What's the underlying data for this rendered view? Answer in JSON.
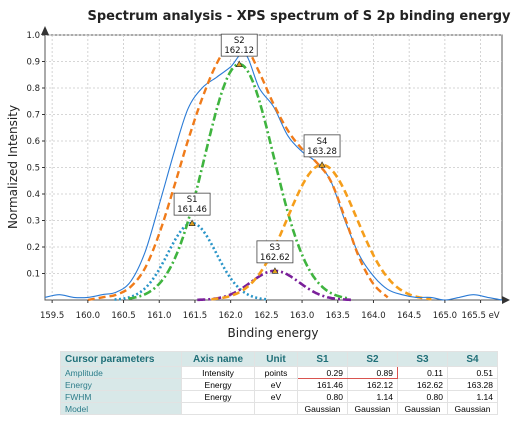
{
  "chart_data": {
    "type": "line",
    "title": "Spectrum analysis - XPS spectrum of S 2p binding energy",
    "xlabel": "Binding energy",
    "ylabel": "Normalized Intensity",
    "xlim": [
      159.4,
      165.8
    ],
    "ylim": [
      0,
      1.0
    ],
    "x_ticks": [
      "159.5",
      "160.0",
      "160.5",
      "161.0",
      "161.5",
      "162.0",
      "162.5",
      "163.0",
      "163.5",
      "164.0",
      "164.5",
      "165.0",
      "165.5 eV"
    ],
    "y_ticks": [
      "0.1",
      "0.2",
      "0.3",
      "0.4",
      "0.5",
      "0.6",
      "0.7",
      "0.8",
      "0.9",
      "1.0"
    ],
    "grid": true,
    "series": [
      {
        "role": "measured-spectrum",
        "color": "#2b7bd6",
        "style": "solid",
        "x": [
          159.4,
          159.6,
          159.8,
          160.0,
          160.2,
          160.4,
          160.6,
          160.8,
          161.0,
          161.2,
          161.4,
          161.6,
          161.8,
          162.0,
          162.2,
          162.4,
          162.6,
          162.8,
          163.0,
          163.2,
          163.4,
          163.6,
          163.8,
          164.0,
          164.2,
          164.4,
          164.6,
          164.8,
          165.0,
          165.2,
          165.4,
          165.6,
          165.8
        ],
        "y": [
          0.01,
          0.02,
          0.01,
          0.01,
          0.02,
          0.03,
          0.07,
          0.18,
          0.36,
          0.55,
          0.72,
          0.8,
          0.84,
          0.88,
          0.93,
          0.8,
          0.73,
          0.62,
          0.56,
          0.52,
          0.45,
          0.3,
          0.17,
          0.09,
          0.04,
          0.02,
          0.01,
          0.01,
          0.0,
          0.01,
          0.02,
          0.01,
          0.0
        ]
      },
      {
        "role": "fit-envelope",
        "color": "#f07b1a",
        "style": "dashed",
        "x": [
          160.0,
          160.2,
          160.4,
          160.6,
          160.8,
          161.0,
          161.2,
          161.4,
          161.6,
          161.8,
          162.0,
          162.2,
          162.4,
          162.6,
          162.8,
          163.0,
          163.2,
          163.4,
          163.6,
          163.8,
          164.0,
          164.2
        ],
        "y": [
          0.0,
          0.01,
          0.02,
          0.05,
          0.12,
          0.25,
          0.42,
          0.6,
          0.76,
          0.89,
          0.97,
          0.96,
          0.86,
          0.74,
          0.64,
          0.57,
          0.52,
          0.45,
          0.31,
          0.16,
          0.06,
          0.01
        ]
      }
    ],
    "peaks": [
      {
        "label": "S1",
        "position": 161.46,
        "amplitude": 0.29,
        "fwhm": 0.8,
        "color": "#2a95c8",
        "style": "dotted"
      },
      {
        "label": "S2",
        "position": 162.12,
        "amplitude": 0.89,
        "fwhm": 1.14,
        "color": "#3fb43f",
        "style": "dash-dot"
      },
      {
        "label": "S3",
        "position": 162.62,
        "amplitude": 0.11,
        "fwhm": 0.8,
        "color": "#7a1f9a",
        "style": "dash-dot"
      },
      {
        "label": "S4",
        "position": 163.28,
        "amplitude": 0.51,
        "fwhm": 1.14,
        "color": "#f59e1b",
        "style": "dashed"
      }
    ],
    "annotations": [
      {
        "label": "S1",
        "value": "161.46"
      },
      {
        "label": "S2",
        "value": "162.12"
      },
      {
        "label": "S3",
        "value": "162.62"
      },
      {
        "label": "S4",
        "value": "163.28"
      }
    ]
  },
  "table": {
    "headers": [
      "Cursor parameters",
      "Axis name",
      "Unit",
      "S1",
      "S2",
      "S3",
      "S4"
    ],
    "rows": [
      {
        "name": "Amplitude",
        "axis": "Intensity",
        "unit": "points",
        "values": [
          "0.29",
          "0.89",
          "0.11",
          "0.51"
        ]
      },
      {
        "name": "Energy",
        "axis": "Energy",
        "unit": "eV",
        "values": [
          "161.46",
          "162.12",
          "162.62",
          "163.28"
        ]
      },
      {
        "name": "FWHM",
        "axis": "Energy",
        "unit": "eV",
        "values": [
          "0.80",
          "1.14",
          "0.80",
          "1.14"
        ]
      },
      {
        "name": "Model",
        "axis": "",
        "unit": "",
        "values": [
          "Gaussian",
          "Gaussian",
          "Gaussian",
          "Gaussian"
        ]
      }
    ],
    "highlight_color": "#d9534f"
  }
}
